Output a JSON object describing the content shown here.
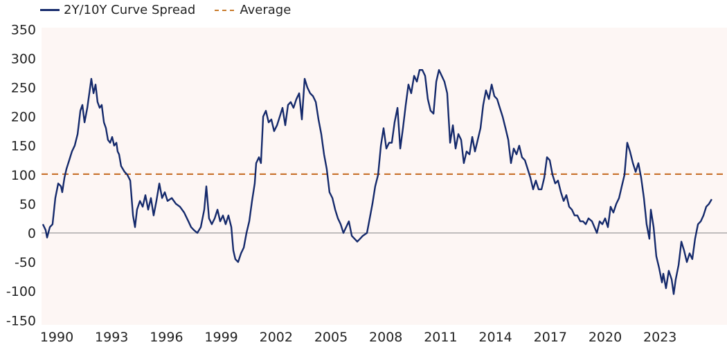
{
  "chart_data": {
    "type": "line",
    "title": "",
    "xlabel": "",
    "ylabel": "",
    "ylim": [
      -150,
      350
    ],
    "yticks": [
      350,
      300,
      250,
      200,
      150,
      100,
      50,
      0,
      -50,
      -100,
      -150
    ],
    "xtick_labels": [
      "1990",
      "1993",
      "1996",
      "1999",
      "2002",
      "2005",
      "2008",
      "2011",
      "2014",
      "2017",
      "2020",
      "2023"
    ],
    "legend_position": "top-left",
    "grid": false,
    "colors": {
      "spread": "#14296b",
      "average": "#c8702a",
      "zero_line": "#9a9a9a",
      "plot_bg": "#fdf6f4"
    },
    "series": [
      {
        "name": "2Y/10Y Curve Spread",
        "x": [
          1989.24,
          1989.39,
          1989.47,
          1989.62,
          1989.77,
          1989.92,
          1990.08,
          1990.23,
          1990.3,
          1990.42,
          1990.53,
          1990.68,
          1990.83,
          1990.98,
          1991.14,
          1991.29,
          1991.4,
          1991.52,
          1991.67,
          1991.78,
          1991.89,
          1992.01,
          1992.12,
          1992.23,
          1992.35,
          1992.46,
          1992.58,
          1992.69,
          1992.8,
          1992.92,
          1993.03,
          1993.14,
          1993.26,
          1993.33,
          1993.41,
          1993.52,
          1993.71,
          1993.86,
          1994.02,
          1994.17,
          1994.28,
          1994.39,
          1994.55,
          1994.7,
          1994.85,
          1995.0,
          1995.15,
          1995.3,
          1995.45,
          1995.61,
          1995.76,
          1995.91,
          1996.06,
          1996.29,
          1996.52,
          1996.74,
          1996.97,
          1997.2,
          1997.35,
          1997.5,
          1997.69,
          1997.88,
          1998.07,
          1998.18,
          1998.33,
          1998.48,
          1998.64,
          1998.79,
          1998.94,
          1999.09,
          1999.24,
          1999.39,
          1999.55,
          1999.66,
          1999.77,
          1999.92,
          2000.08,
          2000.23,
          2000.38,
          2000.53,
          2000.68,
          2000.83,
          2000.91,
          2001.06,
          2001.17,
          2001.29,
          2001.44,
          2001.59,
          2001.74,
          2001.89,
          2002.05,
          2002.2,
          2002.35,
          2002.5,
          2002.65,
          2002.8,
          2002.95,
          2003.11,
          2003.26,
          2003.41,
          2003.56,
          2003.71,
          2003.86,
          2004.02,
          2004.17,
          2004.32,
          2004.47,
          2004.62,
          2004.77,
          2004.92,
          2005.08,
          2005.23,
          2005.38,
          2005.53,
          2005.68,
          2005.83,
          2005.98,
          2006.14,
          2006.29,
          2006.44,
          2006.59,
          2006.74,
          2006.97,
          2007.12,
          2007.27,
          2007.42,
          2007.58,
          2007.73,
          2007.88,
          2008.03,
          2008.18,
          2008.33,
          2008.48,
          2008.64,
          2008.79,
          2008.94,
          2009.09,
          2009.24,
          2009.39,
          2009.55,
          2009.7,
          2009.85,
          2010.0,
          2010.15,
          2010.3,
          2010.45,
          2010.61,
          2010.76,
          2010.91,
          2011.06,
          2011.21,
          2011.36,
          2011.52,
          2011.67,
          2011.82,
          2011.97,
          2012.12,
          2012.27,
          2012.42,
          2012.58,
          2012.73,
          2012.88,
          2013.03,
          2013.18,
          2013.33,
          2013.48,
          2013.64,
          2013.79,
          2013.94,
          2014.09,
          2014.24,
          2014.39,
          2014.55,
          2014.7,
          2014.85,
          2015.0,
          2015.15,
          2015.3,
          2015.45,
          2015.61,
          2015.76,
          2015.91,
          2016.06,
          2016.21,
          2016.36,
          2016.52,
          2016.67,
          2016.82,
          2016.97,
          2017.12,
          2017.27,
          2017.42,
          2017.58,
          2017.73,
          2017.88,
          2018.03,
          2018.18,
          2018.33,
          2018.48,
          2018.64,
          2018.79,
          2018.94,
          2019.09,
          2019.28,
          2019.55,
          2019.7,
          2019.85,
          2020.0,
          2020.15,
          2020.3,
          2020.45,
          2020.61,
          2020.76,
          2020.91,
          2021.06,
          2021.21,
          2021.36,
          2021.52,
          2021.67,
          2021.82,
          2021.97,
          2022.12,
          2022.27,
          2022.42,
          2022.5,
          2022.65,
          2022.8,
          2022.95,
          2023.11,
          2023.18,
          2023.33,
          2023.48,
          2023.64,
          2023.75,
          2023.86,
          2024.02,
          2024.17,
          2024.32,
          2024.47,
          2024.62,
          2024.77,
          2024.92,
          2025.08,
          2025.23,
          2025.38,
          2025.53,
          2025.68,
          2025.83
        ],
        "y": [
          15,
          5,
          -8,
          10,
          15,
          60,
          85,
          80,
          70,
          95,
          110,
          125,
          140,
          150,
          170,
          210,
          220,
          190,
          215,
          240,
          265,
          240,
          255,
          225,
          215,
          220,
          190,
          180,
          160,
          155,
          165,
          150,
          155,
          140,
          135,
          115,
          105,
          100,
          90,
          30,
          10,
          40,
          55,
          45,
          65,
          40,
          60,
          30,
          55,
          85,
          60,
          70,
          55,
          60,
          50,
          45,
          35,
          20,
          10,
          5,
          0,
          10,
          40,
          80,
          25,
          15,
          25,
          40,
          20,
          30,
          15,
          30,
          10,
          -30,
          -45,
          -50,
          -35,
          -25,
          0,
          20,
          55,
          85,
          120,
          130,
          120,
          200,
          210,
          190,
          195,
          175,
          185,
          200,
          215,
          185,
          220,
          225,
          215,
          230,
          240,
          195,
          265,
          250,
          240,
          235,
          225,
          195,
          170,
          135,
          110,
          70,
          60,
          40,
          25,
          15,
          0,
          10,
          20,
          -5,
          -10,
          -15,
          -10,
          -5,
          0,
          25,
          50,
          80,
          100,
          150,
          180,
          145,
          155,
          155,
          190,
          215,
          145,
          180,
          220,
          255,
          240,
          270,
          260,
          280,
          280,
          270,
          230,
          210,
          205,
          260,
          280,
          270,
          260,
          240,
          155,
          185,
          145,
          170,
          160,
          120,
          140,
          135,
          165,
          140,
          160,
          180,
          220,
          245,
          230,
          255,
          235,
          230,
          215,
          200,
          180,
          160,
          120,
          145,
          135,
          150,
          130,
          125,
          110,
          95,
          75,
          90,
          75,
          75,
          95,
          130,
          125,
          100,
          85,
          90,
          70,
          55,
          65,
          45,
          40,
          30,
          30,
          20,
          20,
          15,
          25,
          20,
          0,
          20,
          15,
          25,
          10,
          45,
          35,
          50,
          60,
          80,
          100,
          155,
          140,
          120,
          105,
          120,
          95,
          60,
          15,
          -10,
          40,
          10,
          -40,
          -60,
          -85,
          -70,
          -95,
          -65,
          -80,
          -105,
          -80,
          -55,
          -15,
          -30,
          -50,
          -35,
          -45,
          -10,
          15,
          20,
          30,
          45,
          50,
          58
        ]
      },
      {
        "name": "Average",
        "value": 101
      }
    ]
  },
  "legend": {
    "spread_label": "2Y/10Y Curve Spread",
    "average_label": "Average"
  }
}
